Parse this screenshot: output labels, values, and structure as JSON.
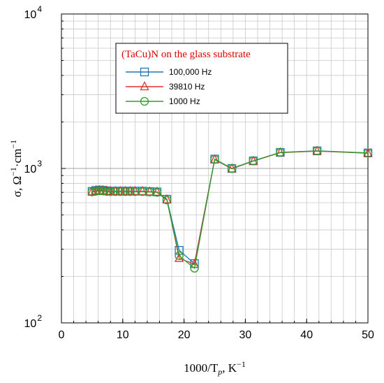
{
  "chart_data": {
    "type": "line",
    "title": "",
    "xlabel": "1000/T",
    "xlabel_sub": "p",
    "xlabel_unit": ", K",
    "xlabel_unit_sup": "−1",
    "ylabel": "σ, Ω",
    "ylabel_sup1": "−1",
    "ylabel_mid": "·cm",
    "ylabel_sup2": "−1",
    "xlim": [
      0,
      50
    ],
    "ylim": [
      100,
      10000
    ],
    "yscale": "log",
    "grid": true,
    "x_ticks": [
      "0",
      "10",
      "20",
      "30",
      "40",
      "50"
    ],
    "y_ticks": [
      {
        "base": "10",
        "exp": "2"
      },
      {
        "base": "10",
        "exp": "3"
      },
      {
        "base": "10",
        "exp": "4"
      }
    ],
    "legend": {
      "title": "(TaCu)N on the glass substrate",
      "position": "top-left"
    },
    "series": [
      {
        "name": "100,000 Hz",
        "color": "#1f77b4",
        "marker": "square",
        "x": [
          5.0,
          5.6,
          6.2,
          6.8,
          7.4,
          8.0,
          8.8,
          9.6,
          10.4,
          11.2,
          12.0,
          13.2,
          14.4,
          15.6,
          17.2,
          19.2,
          21.7,
          25.0,
          27.8,
          31.3,
          35.7,
          41.7,
          50.0
        ],
        "y": [
          710,
          720,
          725,
          722,
          716,
          713,
          713,
          713,
          713,
          713,
          713,
          713,
          708,
          705,
          632,
          295,
          242,
          1150,
          1000,
          1120,
          1270,
          1300,
          1260
        ]
      },
      {
        "name": "39810 Hz",
        "color": "#e03030",
        "marker": "triangle",
        "x": [
          5.0,
          5.6,
          6.2,
          6.8,
          7.4,
          8.0,
          8.8,
          9.6,
          10.4,
          11.2,
          12.0,
          13.2,
          14.4,
          15.6,
          17.2,
          19.2,
          21.7,
          25.0,
          27.8,
          31.3,
          35.7,
          41.7,
          50.0
        ],
        "y": [
          708,
          716,
          720,
          718,
          713,
          710,
          710,
          710,
          710,
          710,
          710,
          710,
          706,
          703,
          628,
          262,
          240,
          1140,
          995,
          1115,
          1265,
          1295,
          1255
        ]
      },
      {
        "name": "1000 Hz",
        "color": "#2ca02c",
        "marker": "circle",
        "x": [
          5.0,
          5.6,
          6.2,
          6.8,
          7.4,
          8.0,
          8.8,
          9.6,
          10.4,
          11.2,
          12.0,
          13.2,
          14.4,
          15.6,
          17.2,
          19.2,
          21.7,
          25.0,
          27.8,
          31.3,
          35.7,
          41.7,
          50.0
        ],
        "y": [
          705,
          712,
          716,
          714,
          710,
          708,
          708,
          708,
          708,
          708,
          708,
          708,
          704,
          700,
          625,
          272,
          226,
          1145,
          998,
          1118,
          1268,
          1298,
          1258
        ]
      }
    ]
  }
}
